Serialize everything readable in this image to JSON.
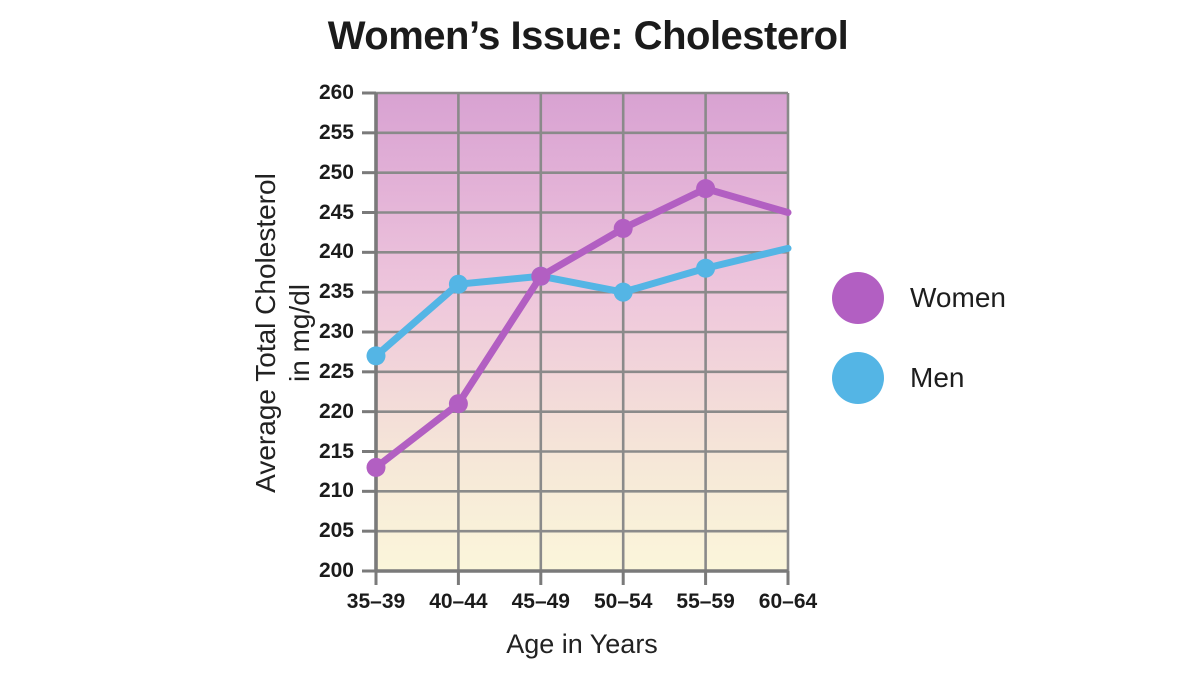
{
  "title": "Women’s Issue: Cholesterol",
  "chart_data": {
    "type": "line",
    "title": "Women’s Issue: Cholesterol",
    "categories": [
      "35–39",
      "40–44",
      "45–49",
      "50–54",
      "55–59",
      "60–64"
    ],
    "series": [
      {
        "name": "Women",
        "color": "#b25fc2",
        "values": [
          213,
          221,
          237,
          243,
          248,
          245
        ]
      },
      {
        "name": "Men",
        "color": "#54b5e5",
        "values": [
          227,
          236,
          237,
          235,
          238,
          240.5
        ]
      }
    ],
    "xlabel": "Age in Years",
    "ylabel": "Average Total Cholesterol in mg/dl",
    "ylabel_line1": "Average Total Cholesterol",
    "ylabel_line2": "in mg/dl",
    "ylim": [
      200,
      260
    ],
    "yticks": [
      200,
      205,
      210,
      215,
      220,
      225,
      230,
      235,
      240,
      245,
      250,
      255,
      260
    ],
    "grid": true,
    "legend_position": "right",
    "plot_background_gradient": [
      "#d8a2d2",
      "#e3b2d7",
      "#eec6dc",
      "#f2d7d9",
      "#f6e8d8",
      "#fbf6da"
    ],
    "gridline_color": "#8a8a8a",
    "axis_color": "#7a7a7a",
    "text_color": "#1e1e1e"
  }
}
